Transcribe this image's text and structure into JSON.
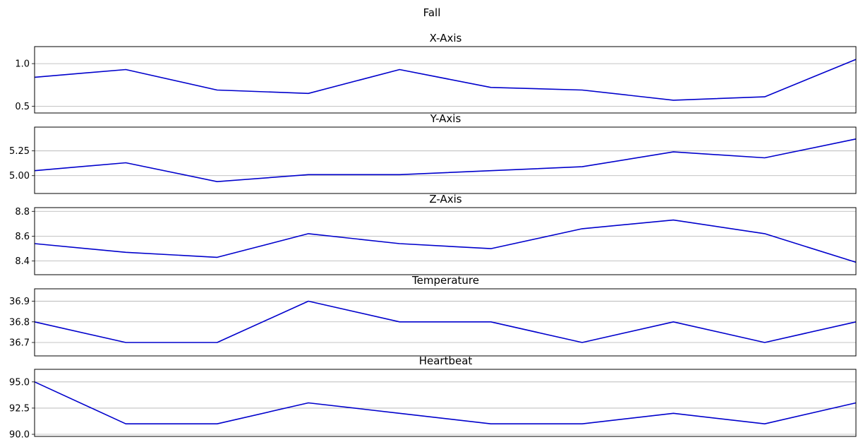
{
  "chart_data": {
    "title": "Fall",
    "line_color": "#0000cc",
    "grid": "y-only",
    "panels": [
      {
        "type": "line",
        "title": "X-Axis",
        "ylim": [
          0.42,
          1.2
        ],
        "yticks": [
          0.5,
          1.0
        ],
        "ytick_labels": [
          "0.5",
          "1.0"
        ],
        "values": [
          0.84,
          0.93,
          0.69,
          0.65,
          0.93,
          0.72,
          0.69,
          0.57,
          0.61,
          1.05
        ]
      },
      {
        "type": "line",
        "title": "Y-Axis",
        "ylim": [
          4.82,
          5.49
        ],
        "yticks": [
          5.0,
          5.25
        ],
        "ytick_labels": [
          "5.00",
          "5.25"
        ],
        "values": [
          5.05,
          5.13,
          4.94,
          5.01,
          5.01,
          5.05,
          5.09,
          5.24,
          5.18,
          5.37
        ]
      },
      {
        "type": "line",
        "title": "Z-Axis",
        "ylim": [
          8.29,
          8.83
        ],
        "yticks": [
          8.4,
          8.6,
          8.8
        ],
        "ytick_labels": [
          "8.4",
          "8.6",
          "8.8"
        ],
        "values": [
          8.54,
          8.47,
          8.43,
          8.62,
          8.54,
          8.5,
          8.66,
          8.73,
          8.62,
          8.39
        ]
      },
      {
        "type": "line",
        "title": "Temperature",
        "ylim": [
          36.635,
          36.96
        ],
        "yticks": [
          36.7,
          36.8,
          36.9
        ],
        "ytick_labels": [
          "36.7",
          "36.8",
          "36.9"
        ],
        "values": [
          36.8,
          36.7,
          36.7,
          36.9,
          36.8,
          36.8,
          36.7,
          36.8,
          36.7,
          36.8
        ]
      },
      {
        "type": "line",
        "title": "Heartbeat",
        "ylim": [
          89.8,
          96.2
        ],
        "yticks": [
          90.0,
          92.5,
          95.0
        ],
        "ytick_labels": [
          "90.0",
          "92.5",
          "95.0"
        ],
        "values": [
          95,
          91,
          91,
          93,
          92,
          91,
          91,
          92,
          91,
          93
        ]
      }
    ]
  }
}
